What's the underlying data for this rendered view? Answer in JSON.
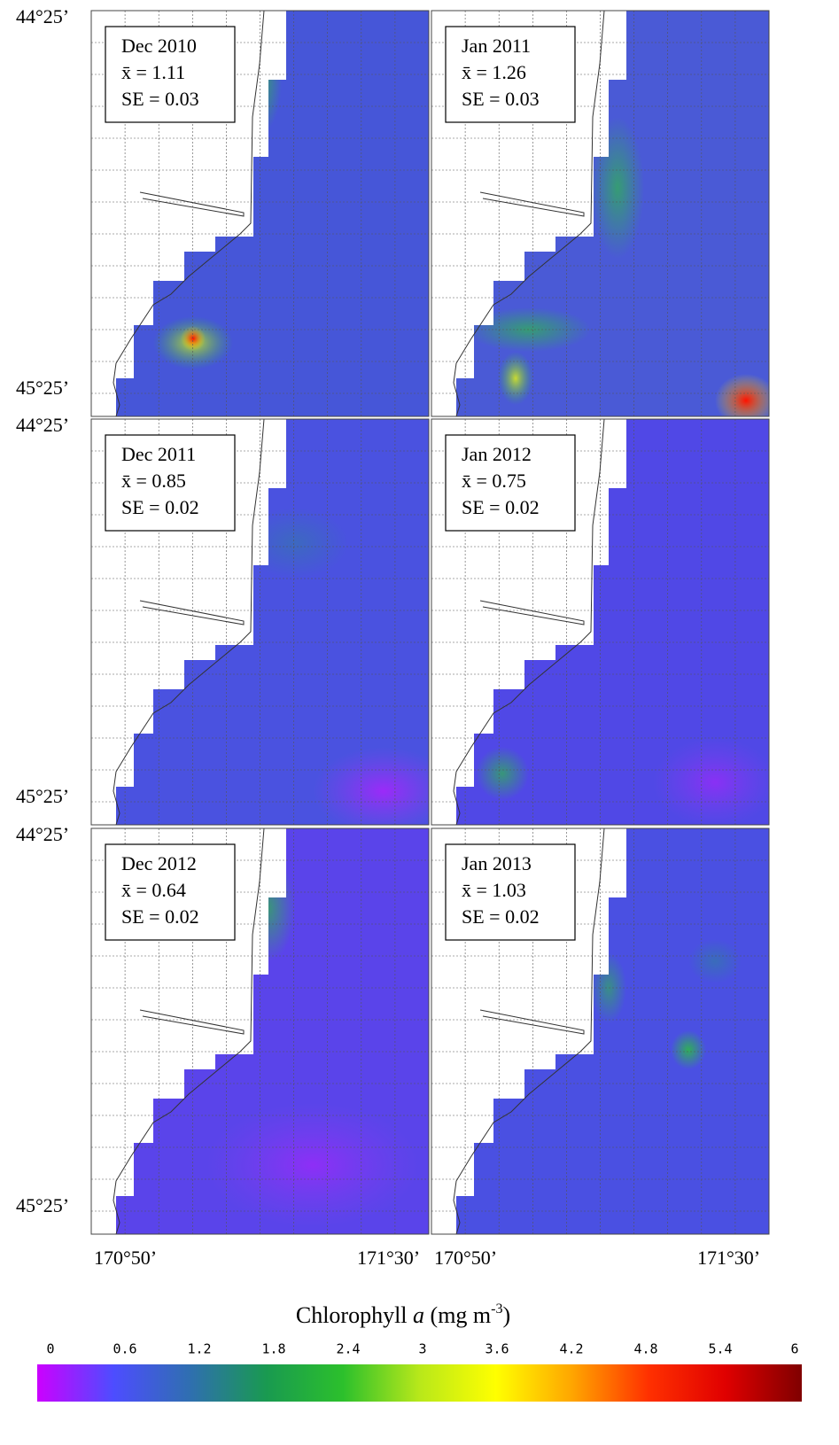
{
  "chart_data": {
    "type": "map-panels",
    "panels": [
      {
        "period": "Dec 2010",
        "mean_label": "x̄ = 1.11",
        "se_label": "SE = 0.03"
      },
      {
        "period": "Jan 2011",
        "mean_label": "x̄ = 1.26",
        "se_label": "SE = 0.03"
      },
      {
        "period": "Dec 2011",
        "mean_label": "x̄ = 0.85",
        "se_label": "SE = 0.02"
      },
      {
        "period": "Jan 2012",
        "mean_label": "x̄ = 0.75",
        "se_label": "SE = 0.02"
      },
      {
        "period": "Dec 2012",
        "mean_label": "x̄ = 0.64",
        "se_label": "SE = 0.02"
      },
      {
        "period": "Jan 2013",
        "mean_label": "x̄ = 1.03",
        "se_label": "SE = 0.02"
      }
    ],
    "lat_labels": [
      "44°25’",
      "45°25’"
    ],
    "lon_labels": [
      "170°50’",
      "171°30’"
    ],
    "colorbar": {
      "title_parts": [
        "Chlorophyll ",
        "a",
        " (mg m",
        "-3",
        ")"
      ],
      "lim": [
        0,
        6
      ],
      "ticks": [
        0,
        0.6,
        1.2,
        1.8,
        2.4,
        3,
        3.6,
        4.2,
        4.8,
        5.4,
        6
      ],
      "colors": [
        "#cc00ff",
        "#4d4dff",
        "#2f6fb0",
        "#199a50",
        "#2cc02c",
        "#b8e81a",
        "#ffff00",
        "#ffa500",
        "#ff3000",
        "#e00000",
        "#800000"
      ]
    }
  }
}
